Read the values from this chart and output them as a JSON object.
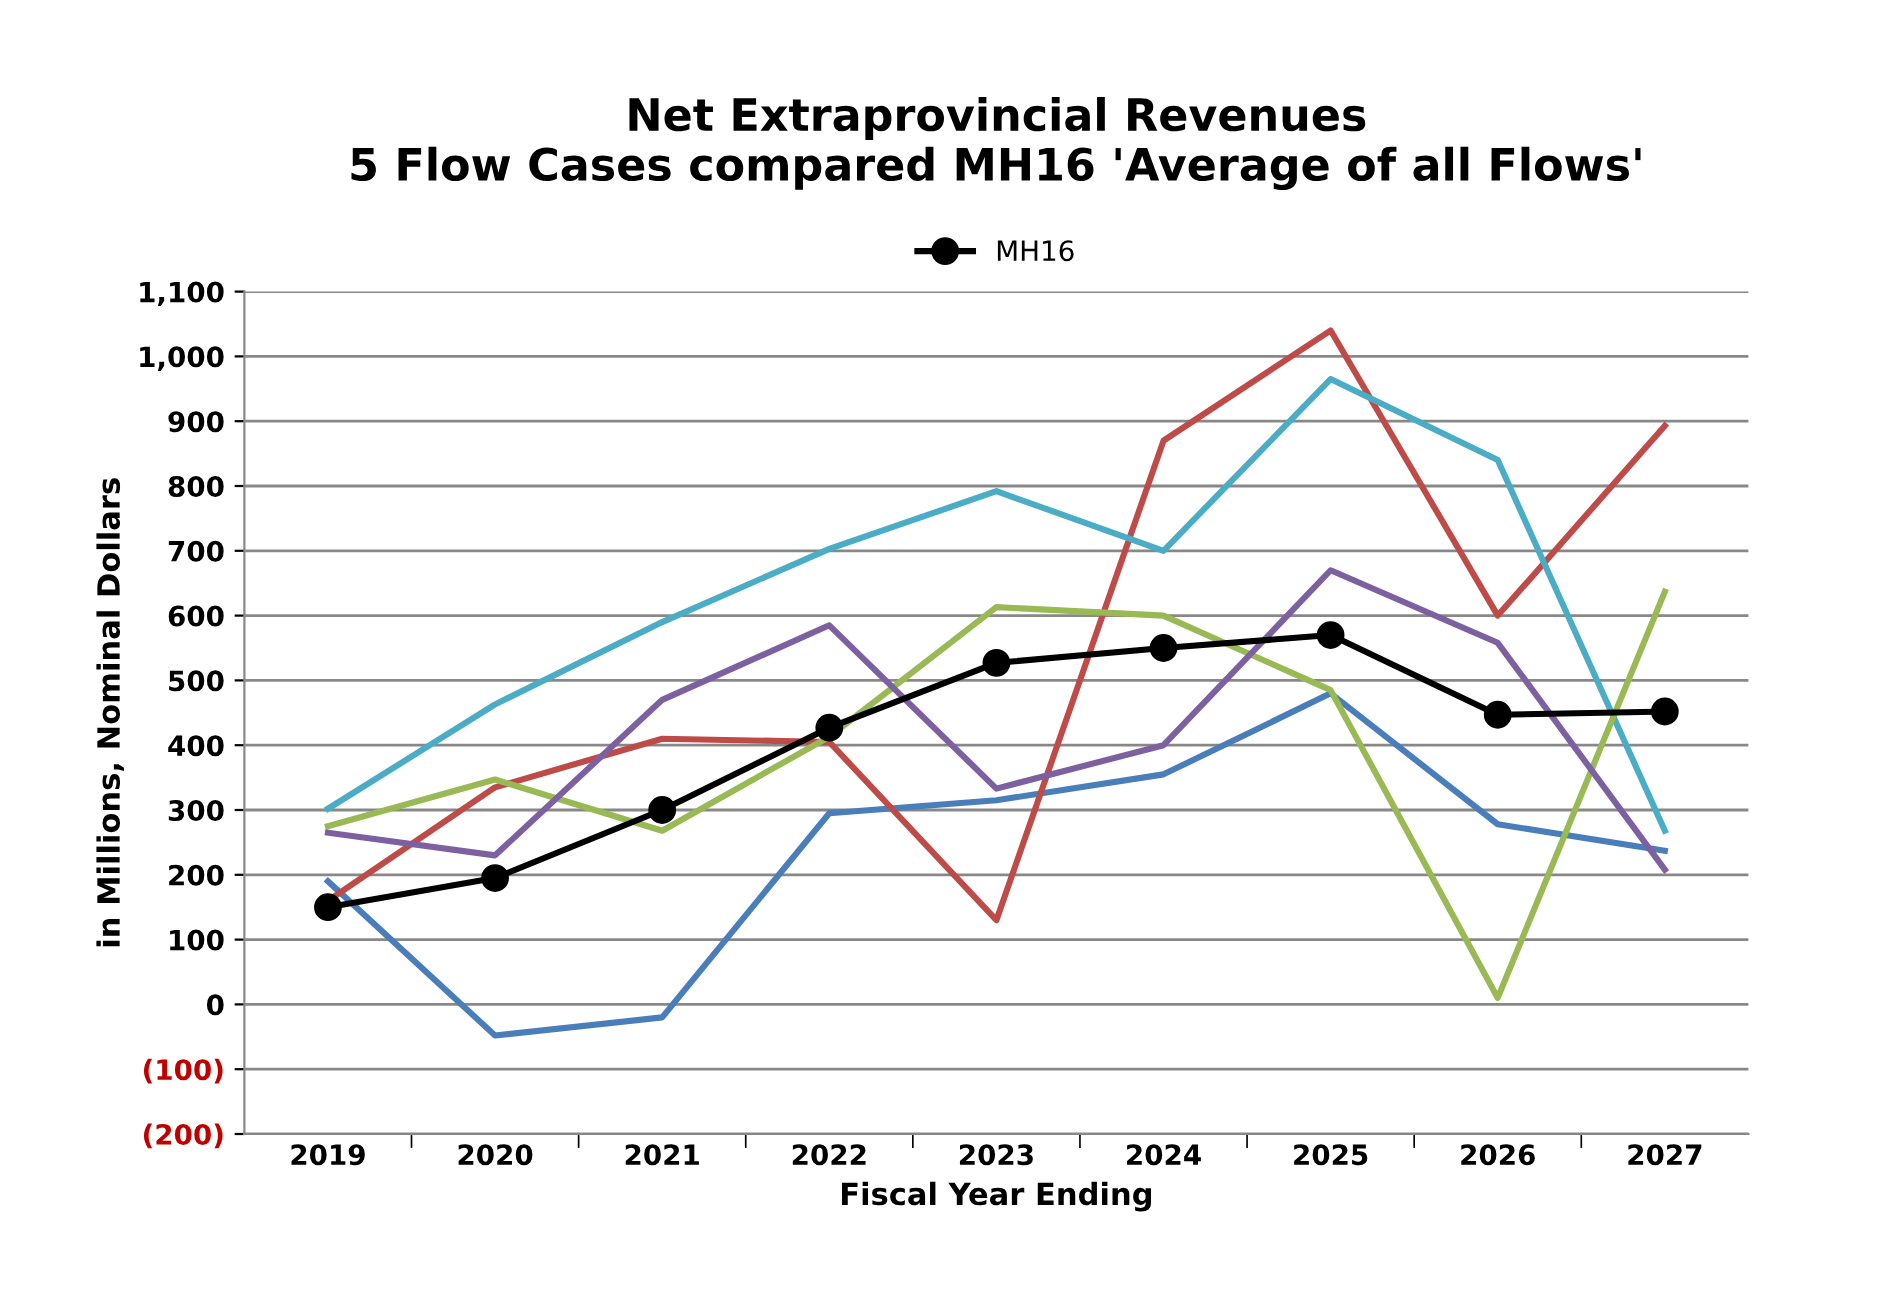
{
  "chart_data": {
    "type": "line",
    "title": "Net Extraprovincial Revenues\n5 Flow Cases compared MH16 'Average of all Flows'",
    "xlabel": "Fiscal Year Ending",
    "ylabel": "in Millions, Nominal Dollars",
    "categories": [
      "2019",
      "2020",
      "2021",
      "2022",
      "2023",
      "2024",
      "2025",
      "2026",
      "2027"
    ],
    "series": [
      {
        "color": "#4a7ebb",
        "values": [
          190,
          -48,
          -20,
          295,
          315,
          355,
          480,
          278,
          237
        ]
      },
      {
        "color": "#be4b48",
        "values": [
          160,
          335,
          410,
          405,
          130,
          870,
          1040,
          600,
          893
        ]
      },
      {
        "color": "#4bacc6",
        "values": [
          302,
          463,
          590,
          703,
          792,
          700,
          965,
          840,
          268
        ]
      },
      {
        "color": "#98b954",
        "values": [
          275,
          347,
          268,
          413,
          613,
          600,
          485,
          10,
          637
        ]
      },
      {
        "color": "#7d60a0",
        "values": [
          265,
          230,
          470,
          585,
          333,
          400,
          670,
          558,
          208
        ]
      },
      {
        "name": "MH16",
        "color": "#000000",
        "marker": "circle",
        "values": [
          150,
          195,
          300,
          427,
          527,
          550,
          570,
          447,
          452
        ]
      }
    ],
    "ylim": [
      -200,
      1100
    ],
    "yticks": [
      {
        "value": -200,
        "label": "(200)"
      },
      {
        "value": -100,
        "label": "(100)"
      },
      0,
      100,
      200,
      300,
      400,
      500,
      600,
      700,
      800,
      900,
      {
        "value": 1000,
        "label": "1,000"
      },
      {
        "value": 1100,
        "label": "1,100"
      }
    ],
    "grid": "y",
    "legend": "top"
  }
}
